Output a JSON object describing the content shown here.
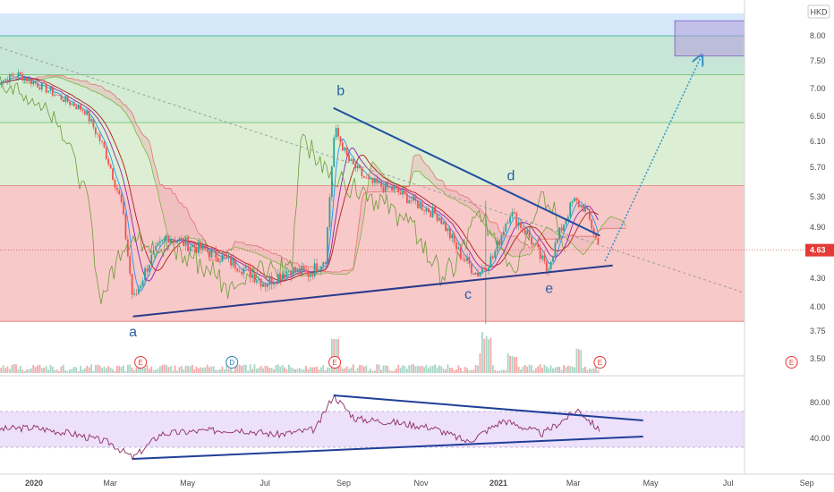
{
  "header": {
    "currency": "HKD"
  },
  "last_price": {
    "value": "4.63",
    "color": "#e53935"
  },
  "chart_data": [
    {
      "type": "line",
      "name": "price-panel",
      "title": "",
      "xlabel": "",
      "ylabel": "",
      "ylim": [
        3.45,
        8.45
      ],
      "y_ticks": [
        "8.00",
        "7.50",
        "7.00",
        "6.50",
        "6.10",
        "5.70",
        "5.30",
        "4.90",
        "4.63",
        "4.30",
        "4.00",
        "3.75",
        "3.50"
      ],
      "x_ticks": [
        "2020",
        "Mar",
        "May",
        "Jul",
        "Sep",
        "Nov",
        "2021",
        "Mar",
        "May",
        "Jul",
        "Sep"
      ],
      "approx_close_series": [
        [
          "2019-12-01",
          7.1
        ],
        [
          "2019-12-20",
          7.25
        ],
        [
          "2020-01-10",
          7.0
        ],
        [
          "2020-01-25",
          6.8
        ],
        [
          "2020-02-10",
          6.6
        ],
        [
          "2020-02-25",
          6.0
        ],
        [
          "2020-03-10",
          5.2
        ],
        [
          "2020-03-19",
          4.05
        ],
        [
          "2020-04-01",
          4.5
        ],
        [
          "2020-04-15",
          4.8
        ],
        [
          "2020-05-01",
          4.7
        ],
        [
          "2020-05-20",
          4.6
        ],
        [
          "2020-06-10",
          4.45
        ],
        [
          "2020-07-01",
          4.25
        ],
        [
          "2020-07-20",
          4.4
        ],
        [
          "2020-08-05",
          4.35
        ],
        [
          "2020-08-18",
          4.55
        ],
        [
          "2020-08-25",
          6.3
        ],
        [
          "2020-09-05",
          5.8
        ],
        [
          "2020-09-20",
          5.5
        ],
        [
          "2020-10-10",
          5.4
        ],
        [
          "2020-10-30",
          5.2
        ],
        [
          "2020-11-15",
          5.05
        ],
        [
          "2020-12-01",
          4.6
        ],
        [
          "2020-12-15",
          4.35
        ],
        [
          "2020-12-28",
          4.55
        ],
        [
          "2021-01-10",
          5.1
        ],
        [
          "2021-01-25",
          4.8
        ],
        [
          "2021-02-08",
          4.4
        ],
        [
          "2021-02-20",
          4.9
        ],
        [
          "2021-03-01",
          5.25
        ],
        [
          "2021-03-10",
          5.15
        ],
        [
          "2021-03-22",
          4.63
        ]
      ],
      "wave_labels": [
        {
          "label": "a",
          "date": "2020-03-19",
          "value": 3.9
        },
        {
          "label": "b",
          "date": "2020-08-24",
          "value": 6.65
        },
        {
          "label": "c",
          "date": "2020-12-08",
          "value": 4.33
        },
        {
          "label": "d",
          "date": "2021-01-08",
          "value": 5.45
        },
        {
          "label": "e",
          "date": "2021-02-10",
          "value": 4.36
        }
      ],
      "trendlines": [
        {
          "name": "upper-triangle-line",
          "from": [
            "2020-08-24",
            6.65
          ],
          "to": [
            "2021-03-22",
            4.8
          ]
        },
        {
          "name": "lower-triangle-line",
          "from": [
            "2020-03-19",
            3.9
          ],
          "to": [
            "2021-04-01",
            4.45
          ]
        },
        {
          "name": "long-term-dotted-downtrend",
          "from": [
            "2019-12-01",
            7.8
          ],
          "to": [
            "2021-09-20",
            3.85
          ]
        }
      ],
      "projection_arrow": {
        "from": [
          "2021-03-26",
          4.5
        ],
        "to": [
          "2021-06-10",
          7.6
        ]
      },
      "target_box": {
        "date_from": "2021-05-20",
        "date_to": "2021-07-20",
        "value_from": 7.6,
        "value_to": 8.3
      },
      "zones": [
        {
          "name": "red-zone",
          "from": 3.85,
          "to": 5.45,
          "color": "#f8c9c9"
        },
        {
          "name": "green-zone-1",
          "from": 5.45,
          "to": 6.4,
          "color": "#dcefd4"
        },
        {
          "name": "green-zone-2",
          "from": 6.4,
          "to": 7.25,
          "color": "#d3ecd3"
        },
        {
          "name": "teal-zone",
          "from": 7.25,
          "to": 8.0,
          "color": "#c8e6d8"
        },
        {
          "name": "blue-zone",
          "from": 8.0,
          "to": 8.45,
          "color": "#d6e9fb"
        }
      ],
      "event_markers": [
        {
          "label": "E",
          "date": "2020-03-25",
          "color": "#e53935"
        },
        {
          "label": "D",
          "date": "2020-06-05",
          "color": "#2f80b8"
        },
        {
          "label": "E",
          "date": "2020-08-25",
          "color": "#e53935"
        },
        {
          "label": "E",
          "date": "2021-03-22",
          "color": "#e53935"
        },
        {
          "label": "E",
          "date": "2021-08-20",
          "color": "#e53935"
        }
      ],
      "grid": false,
      "legend": "none"
    },
    {
      "type": "line",
      "name": "rsi-panel",
      "title": "",
      "ylim": [
        20,
        100
      ],
      "y_ticks": [
        "80.00",
        "40.00"
      ],
      "band": [
        30,
        70
      ],
      "approx_series": [
        [
          "2019-12-01",
          50
        ],
        [
          "2020-01-01",
          52
        ],
        [
          "2020-02-01",
          45
        ],
        [
          "2020-03-01",
          35
        ],
        [
          "2020-03-19",
          18
        ],
        [
          "2020-04-10",
          45
        ],
        [
          "2020-05-10",
          48
        ],
        [
          "2020-06-10",
          50
        ],
        [
          "2020-07-10",
          44
        ],
        [
          "2020-08-10",
          50
        ],
        [
          "2020-08-24",
          88
        ],
        [
          "2020-09-10",
          62
        ],
        [
          "2020-10-10",
          58
        ],
        [
          "2020-11-10",
          52
        ],
        [
          "2020-12-08",
          36
        ],
        [
          "2021-01-05",
          60
        ],
        [
          "2021-02-05",
          45
        ],
        [
          "2021-03-05",
          72
        ],
        [
          "2021-03-22",
          48
        ]
      ],
      "trendlines": [
        {
          "name": "rsi-upper-line",
          "from": [
            "2020-08-24",
            88
          ],
          "to": [
            "2021-04-25",
            60
          ]
        },
        {
          "name": "rsi-lower-line",
          "from": [
            "2020-03-19",
            17
          ],
          "to": [
            "2021-04-25",
            42
          ]
        }
      ]
    }
  ]
}
